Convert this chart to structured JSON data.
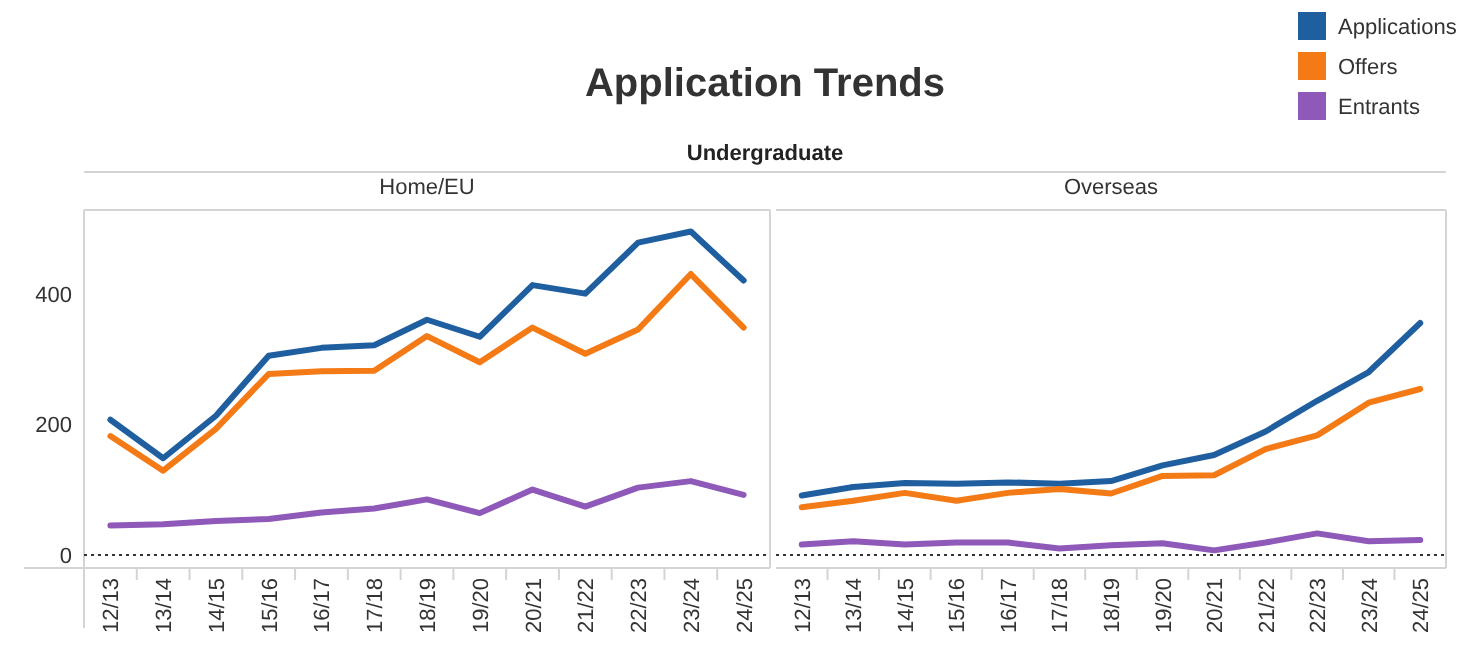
{
  "chart_data": [
    {
      "type": "line",
      "title": "Application Trends",
      "subtitle": "Undergraduate",
      "annotations": [
        "Home/EU"
      ],
      "categories": [
        "12/13",
        "13/14",
        "14/15",
        "15/16",
        "16/17",
        "17/18",
        "18/19",
        "19/20",
        "20/21",
        "21/22",
        "22/23",
        "23/24",
        "24/25"
      ],
      "ylim": [
        -20,
        528
      ],
      "yticks": [
        0,
        200,
        400
      ],
      "legend": "top right",
      "grid": false,
      "marker": "none",
      "ref_lines": [
        {
          "axis": "y",
          "value": 0,
          "line_style": "dotted",
          "color": "#333333"
        }
      ],
      "series": [
        {
          "name": "Applications",
          "color": "#1f5fa0",
          "values": [
            207,
            148,
            213,
            305,
            317,
            321,
            360,
            334,
            413,
            400,
            478,
            495,
            420
          ]
        },
        {
          "name": "Offers",
          "color": "#f47a16",
          "values": [
            182,
            129,
            193,
            277,
            281,
            282,
            335,
            295,
            348,
            308,
            345,
            430,
            348
          ]
        },
        {
          "name": "Entrants",
          "color": "#8e59b8",
          "values": [
            45,
            47,
            52,
            55,
            65,
            71,
            85,
            64,
            100,
            74,
            103,
            113,
            92
          ]
        }
      ]
    },
    {
      "type": "line",
      "annotations": [
        "Overseas"
      ],
      "categories": [
        "12/13",
        "13/14",
        "14/15",
        "15/16",
        "16/17",
        "17/18",
        "18/19",
        "19/20",
        "20/21",
        "21/22",
        "22/23",
        "23/24",
        "24/25"
      ],
      "ylim": [
        -20,
        528
      ],
      "tick_labels": "x",
      "grid": false,
      "marker": "none",
      "ref_lines": [
        {
          "axis": "y",
          "value": 0,
          "line_style": "dotted",
          "color": "#333333"
        }
      ],
      "series": [
        {
          "color": "#1f5fa0",
          "values": [
            91,
            104,
            110,
            109,
            111,
            109,
            113,
            137,
            153,
            189,
            236,
            280,
            355
          ]
        },
        {
          "color": "#f47a16",
          "values": [
            73,
            83,
            95,
            83,
            95,
            101,
            94,
            121,
            122,
            162,
            183,
            233,
            254
          ]
        },
        {
          "color": "#8e59b8",
          "values": [
            16,
            21,
            16,
            19,
            19,
            10,
            15,
            18,
            7,
            19,
            33,
            21,
            23
          ]
        }
      ]
    }
  ]
}
